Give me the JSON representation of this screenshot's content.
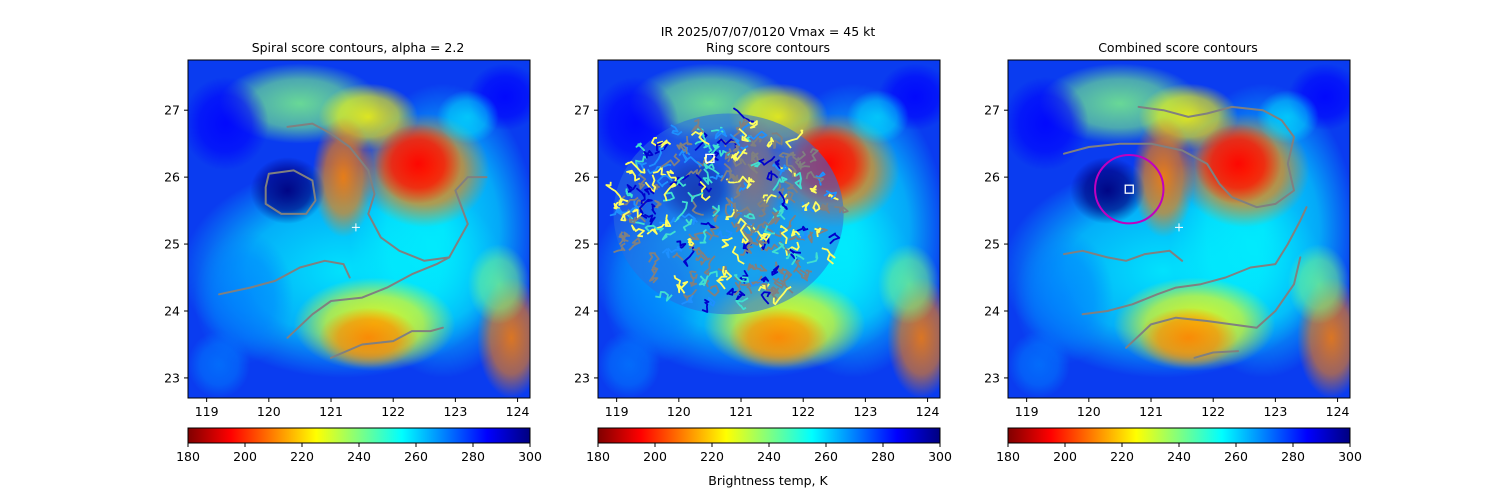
{
  "figure": {
    "suptitle_line1": "IR  2025/07/07/0120    Vmax = 45 kt",
    "colorbar_label": "Brightness temp, K",
    "colormap": [
      "#800000",
      "#ff0000",
      "#ff8000",
      "#ffff00",
      "#80ff80",
      "#00ffff",
      "#0080ff",
      "#0000ff",
      "#000080"
    ],
    "contour_color": "#808080",
    "circle_color": "#c000c0",
    "marker_color": "#ffffff"
  },
  "chart_data": [
    {
      "type": "heatmap",
      "title": "Spiral score contours, alpha =  2.2",
      "xlim": [
        118.7,
        124.2
      ],
      "ylim": [
        22.7,
        27.75
      ],
      "xticks": [
        "119",
        "120",
        "121",
        "122",
        "123",
        "124"
      ],
      "yticks": [
        "23",
        "24",
        "25",
        "26",
        "27"
      ],
      "colorbar": {
        "range": [
          180,
          300
        ],
        "ticks": [
          "180",
          "200",
          "220",
          "240",
          "260",
          "280",
          "300"
        ]
      },
      "center_marker": {
        "shape": "plus",
        "lon": 121.4,
        "lat": 25.25
      },
      "contours": [
        [
          [
            120.3,
            26.75
          ],
          [
            120.7,
            26.8
          ],
          [
            121.0,
            26.65
          ],
          [
            121.3,
            26.45
          ],
          [
            121.6,
            26.1
          ],
          [
            121.7,
            25.75
          ],
          [
            121.6,
            25.45
          ],
          [
            121.8,
            25.1
          ],
          [
            122.1,
            24.9
          ],
          [
            122.5,
            24.75
          ],
          [
            122.9,
            24.8
          ],
          [
            123.2,
            25.3
          ],
          [
            123.0,
            25.8
          ],
          [
            123.2,
            26.0
          ],
          [
            123.5,
            26.0
          ]
        ],
        [
          [
            120.0,
            26.05
          ],
          [
            120.4,
            26.1
          ],
          [
            120.7,
            25.95
          ],
          [
            120.75,
            25.65
          ],
          [
            120.6,
            25.45
          ],
          [
            120.2,
            25.45
          ],
          [
            119.95,
            25.6
          ],
          [
            119.95,
            25.85
          ],
          [
            120.0,
            26.05
          ]
        ],
        [
          [
            119.2,
            24.25
          ],
          [
            119.7,
            24.35
          ],
          [
            120.1,
            24.45
          ],
          [
            120.5,
            24.65
          ],
          [
            120.9,
            24.75
          ],
          [
            121.2,
            24.7
          ],
          [
            121.3,
            24.5
          ]
        ],
        [
          [
            120.3,
            23.6
          ],
          [
            120.7,
            23.95
          ],
          [
            121.0,
            24.15
          ],
          [
            121.5,
            24.2
          ],
          [
            121.9,
            24.35
          ],
          [
            122.3,
            24.55
          ],
          [
            122.7,
            24.7
          ],
          [
            122.9,
            24.8
          ]
        ],
        [
          [
            121.0,
            23.3
          ],
          [
            121.5,
            23.5
          ],
          [
            122.0,
            23.55
          ],
          [
            122.3,
            23.7
          ],
          [
            122.6,
            23.7
          ],
          [
            122.8,
            23.75
          ]
        ]
      ]
    },
    {
      "type": "heatmap",
      "title": "Ring score contours",
      "xlim": [
        118.7,
        124.2
      ],
      "ylim": [
        22.7,
        27.75
      ],
      "xticks": [
        "119",
        "120",
        "121",
        "122",
        "123",
        "124"
      ],
      "yticks": [
        "23",
        "24",
        "25",
        "26",
        "27"
      ],
      "colorbar": {
        "range": [
          180,
          300
        ],
        "ticks": [
          "180",
          "200",
          "220",
          "240",
          "260",
          "280",
          "300"
        ]
      },
      "center_marker": {
        "shape": "square",
        "lon": 120.5,
        "lat": 26.28
      },
      "ring_region": {
        "lon": 120.8,
        "lat": 25.45,
        "lon_radius": 1.85,
        "lat_radius": 1.5
      },
      "contours": []
    },
    {
      "type": "heatmap",
      "title": "Combined score contours",
      "xlim": [
        118.7,
        124.2
      ],
      "ylim": [
        22.7,
        27.75
      ],
      "xticks": [
        "119",
        "120",
        "121",
        "122",
        "123",
        "124"
      ],
      "yticks": [
        "23",
        "24",
        "25",
        "26",
        "27"
      ],
      "colorbar": {
        "range": [
          180,
          300
        ],
        "ticks": [
          "180",
          "200",
          "220",
          "240",
          "260",
          "280",
          "300"
        ]
      },
      "center_marker": {
        "shape": "plus",
        "lon": 121.45,
        "lat": 25.25
      },
      "combined_center": {
        "lon": 120.65,
        "lat": 25.82,
        "radius_deg": 0.55
      },
      "contours": [
        [
          [
            120.8,
            27.05
          ],
          [
            121.2,
            27.0
          ],
          [
            121.6,
            26.9
          ],
          [
            121.9,
            26.95
          ],
          [
            122.3,
            27.05
          ],
          [
            122.8,
            27.0
          ],
          [
            123.1,
            26.85
          ],
          [
            123.3,
            26.6
          ],
          [
            123.2,
            26.2
          ],
          [
            123.3,
            25.8
          ],
          [
            123.0,
            25.6
          ],
          [
            122.7,
            25.55
          ],
          [
            122.3,
            25.7
          ],
          [
            122.1,
            25.9
          ],
          [
            121.9,
            26.2
          ],
          [
            121.5,
            26.4
          ],
          [
            121.0,
            26.5
          ],
          [
            120.5,
            26.5
          ],
          [
            120.0,
            26.45
          ],
          [
            119.6,
            26.35
          ]
        ],
        [
          [
            119.6,
            24.85
          ],
          [
            119.9,
            24.9
          ],
          [
            120.3,
            24.8
          ],
          [
            120.6,
            24.75
          ],
          [
            120.9,
            24.85
          ],
          [
            121.3,
            24.9
          ],
          [
            121.5,
            24.75
          ]
        ],
        [
          [
            119.9,
            23.95
          ],
          [
            120.3,
            24.0
          ],
          [
            120.7,
            24.1
          ],
          [
            121.1,
            24.25
          ],
          [
            121.4,
            24.35
          ],
          [
            121.8,
            24.4
          ],
          [
            122.2,
            24.5
          ],
          [
            122.6,
            24.65
          ],
          [
            123.0,
            24.7
          ],
          [
            123.2,
            25.0
          ],
          [
            123.4,
            25.35
          ],
          [
            123.5,
            25.55
          ]
        ],
        [
          [
            120.6,
            23.45
          ],
          [
            121.0,
            23.8
          ],
          [
            121.4,
            23.9
          ],
          [
            121.9,
            23.85
          ],
          [
            122.3,
            23.8
          ],
          [
            122.7,
            23.75
          ],
          [
            123.0,
            24.0
          ],
          [
            123.3,
            24.4
          ],
          [
            123.4,
            24.8
          ]
        ],
        [
          [
            121.7,
            23.3
          ],
          [
            122.0,
            23.38
          ],
          [
            122.4,
            23.4
          ]
        ]
      ]
    }
  ]
}
